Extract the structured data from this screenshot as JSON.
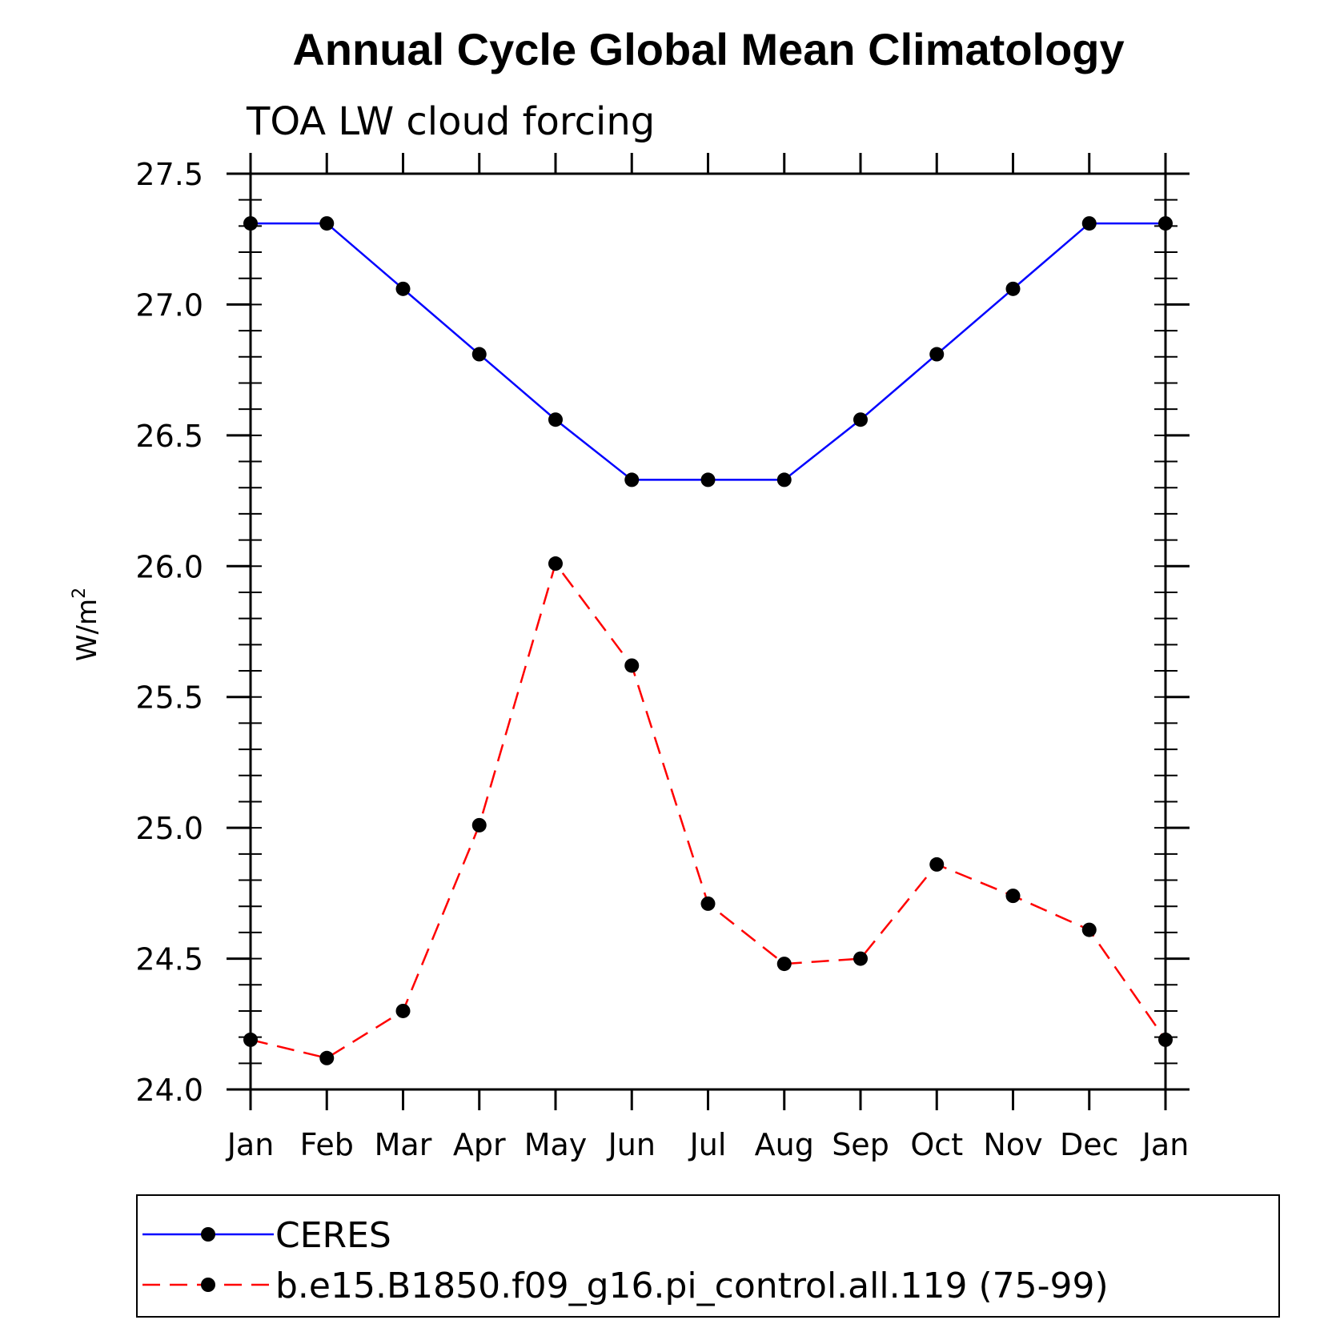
{
  "chart_data": {
    "type": "line",
    "title": "Annual Cycle Global Mean Climatology",
    "subtitle": "TOA LW cloud forcing",
    "xlabel": "",
    "ylabel_base": "W/m",
    "ylabel_sup": "2",
    "categories": [
      "Jan",
      "Feb",
      "Mar",
      "Apr",
      "May",
      "Jun",
      "Jul",
      "Aug",
      "Sep",
      "Oct",
      "Nov",
      "Dec",
      "Jan"
    ],
    "ylim": [
      24.0,
      27.5
    ],
    "yticks": [
      "24.0",
      "24.5",
      "25.0",
      "25.5",
      "26.0",
      "26.5",
      "27.0",
      "27.5"
    ],
    "y_minor_step": 0.1,
    "grid": false,
    "legend_position": "bottom",
    "series": [
      {
        "name": "CERES",
        "color": "#0000ff",
        "dash": "solid",
        "marker": "circle",
        "values": [
          27.31,
          27.31,
          27.06,
          26.81,
          26.56,
          26.33,
          26.33,
          26.33,
          26.56,
          26.81,
          27.06,
          27.31,
          27.31
        ]
      },
      {
        "name": "b.e15.B1850.f09_g16.pi_control.all.119 (75-99)",
        "color": "#ff0000",
        "dash": "dashed",
        "marker": "circle",
        "values": [
          24.19,
          24.12,
          24.3,
          25.01,
          26.01,
          25.62,
          24.71,
          24.48,
          24.5,
          24.86,
          24.74,
          24.61,
          24.19
        ]
      }
    ]
  }
}
